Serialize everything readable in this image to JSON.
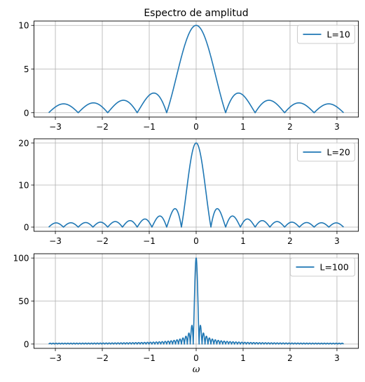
{
  "chart_data": [
    {
      "type": "line",
      "function": "abs(sin(L*w/2)/sin(w/2))",
      "title": "Espectro de amplitud",
      "xlabel": "",
      "ylabel": "",
      "xlim": [
        -3.4558,
        3.4558
      ],
      "ylim": [
        -0.5,
        10.5
      ],
      "xticks": [
        -3,
        -2,
        -1,
        0,
        1,
        2,
        3
      ],
      "xtick_labels": [
        "−3",
        "−2",
        "−1",
        "0",
        "1",
        "2",
        "3"
      ],
      "yticks": [
        0,
        5,
        10
      ],
      "ytick_labels": [
        "0",
        "5",
        "10"
      ],
      "grid": true,
      "legend_position": "top-right",
      "series": [
        {
          "name": "L=10",
          "L": 10,
          "x_range": [
            -3.1416,
            3.1416
          ],
          "color": "#1f77b4",
          "peak": [
            0,
            10
          ]
        }
      ]
    },
    {
      "type": "line",
      "function": "abs(sin(L*w/2)/sin(w/2))",
      "title": "",
      "xlabel": "",
      "ylabel": "",
      "xlim": [
        -3.4558,
        3.4558
      ],
      "ylim": [
        -1,
        21
      ],
      "xticks": [
        -3,
        -2,
        -1,
        0,
        1,
        2,
        3
      ],
      "xtick_labels": [
        "−3",
        "−2",
        "−1",
        "0",
        "1",
        "2",
        "3"
      ],
      "yticks": [
        0,
        10,
        20
      ],
      "ytick_labels": [
        "0",
        "10",
        "20"
      ],
      "grid": true,
      "legend_position": "top-right",
      "series": [
        {
          "name": "L=20",
          "L": 20,
          "x_range": [
            -3.1416,
            3.1416
          ],
          "color": "#1f77b4",
          "peak": [
            0,
            20
          ]
        }
      ]
    },
    {
      "type": "line",
      "function": "abs(sin(L*w/2)/sin(w/2))",
      "title": "",
      "xlabel": "ω",
      "ylabel": "",
      "xlim": [
        -3.4558,
        3.4558
      ],
      "ylim": [
        -5,
        105
      ],
      "xticks": [
        -3,
        -2,
        -1,
        0,
        1,
        2,
        3
      ],
      "xtick_labels": [
        "−3",
        "−2",
        "−1",
        "0",
        "1",
        "2",
        "3"
      ],
      "yticks": [
        0,
        50,
        100
      ],
      "ytick_labels": [
        "0",
        "50",
        "100"
      ],
      "grid": true,
      "legend_position": "top-right",
      "series": [
        {
          "name": "L=100",
          "L": 100,
          "x_range": [
            -3.1416,
            3.1416
          ],
          "color": "#1f77b4",
          "peak": [
            0,
            100
          ]
        }
      ]
    }
  ]
}
